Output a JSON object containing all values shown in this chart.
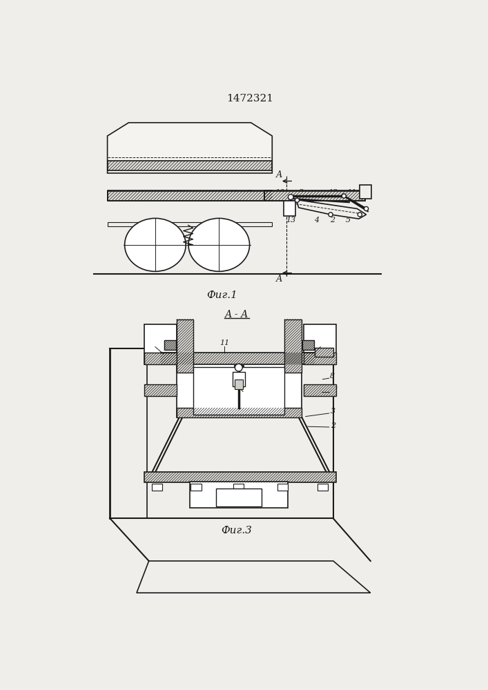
{
  "title": "1472321",
  "fig1_label": "Фиг.1",
  "fig3_label": "Фиг.3",
  "section_label": "А - А",
  "bg_color": "#f0eeea",
  "line_color": "#1a1a1a"
}
